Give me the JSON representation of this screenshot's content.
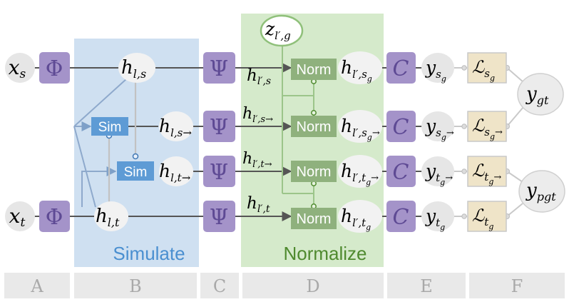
{
  "panels": {
    "simulate": "Simulate",
    "normalize": "Normalize"
  },
  "columns": [
    "A",
    "B",
    "C",
    "D",
    "E",
    "F"
  ],
  "inputs": {
    "x_s": {
      "base": "x",
      "sub": "s"
    },
    "x_t": {
      "base": "x",
      "sub": "t"
    }
  },
  "ops": {
    "phi": "Φ",
    "psi": "Ψ",
    "c": "C",
    "sim": "Sim",
    "norm": "Norm"
  },
  "latent": {
    "base": "z",
    "sub": "l′,g"
  },
  "hidden": {
    "h_ls": {
      "base": "h",
      "sub": "l,s"
    },
    "h_ls_arrow": {
      "base": "h",
      "sub": "l,s→"
    },
    "h_lt_arrow": {
      "base": "h",
      "sub": "l,t→"
    },
    "h_lt": {
      "base": "h",
      "sub": "l,t"
    }
  },
  "edge_labels": {
    "h_lps": {
      "base": "h",
      "sub": "l′,s"
    },
    "h_lps_arrow": {
      "base": "h",
      "sub": "l′,s→"
    },
    "h_lpt_arrow": {
      "base": "h",
      "sub": "l′,t→"
    },
    "h_lpt": {
      "base": "h",
      "sub": "l′,t"
    }
  },
  "normalized": {
    "sg": {
      "base": "h",
      "sub": "l′,s",
      "subsub": "g"
    },
    "sg_arrow": {
      "base": "h",
      "sub": "l′,s",
      "subsub": "g",
      "tail": "→"
    },
    "tg_arrow": {
      "base": "h",
      "sub": "l′,t",
      "subsub": "g",
      "tail": "→"
    },
    "tg": {
      "base": "h",
      "sub": "l′,t",
      "subsub": "g"
    }
  },
  "outputs": {
    "y_sg": {
      "base": "y",
      "sub": "s",
      "subsub": "g"
    },
    "y_sg_arrow": {
      "base": "y",
      "sub": "s",
      "subsub": "g",
      "tail": "→"
    },
    "y_tg_arrow": {
      "base": "y",
      "sub": "t",
      "subsub": "g",
      "tail": "→"
    },
    "y_tg": {
      "base": "y",
      "sub": "t",
      "subsub": "g"
    }
  },
  "losses": {
    "l_sg": {
      "base": "ℒ",
      "sub": "s",
      "subsub": "g"
    },
    "l_sg_arrow": {
      "base": "ℒ",
      "sub": "s",
      "subsub": "g",
      "tail": "→"
    },
    "l_tg_arrow": {
      "base": "ℒ",
      "sub": "t",
      "subsub": "g",
      "tail": "→"
    },
    "l_tg": {
      "base": "ℒ",
      "sub": "t",
      "subsub": "g"
    }
  },
  "ground_truth": {
    "y_gt": {
      "base": "y",
      "sub": "gt"
    },
    "y_pgt": {
      "base": "y",
      "sub": "pgt"
    }
  },
  "colors": {
    "simulate_bg": "#cfe0f1",
    "normalize_bg": "#d5eacb",
    "op_box": "#a493c9",
    "sim_box": "#5e9bd5",
    "norm_box": "#8fb17d",
    "loss_box": "#efe4c8",
    "node": "#e6e6e6",
    "column_bar": "#e9e9e9",
    "simulate_text": "#4a8fd0",
    "normalize_text": "#4f8a2f"
  }
}
